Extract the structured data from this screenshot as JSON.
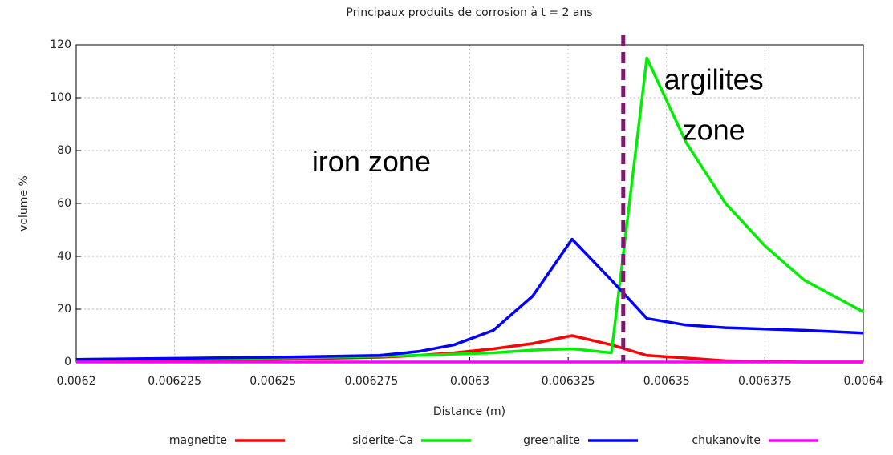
{
  "chart_data": {
    "type": "line",
    "title": "Principaux produits de corrosion à t = 2 ans",
    "x_label": "Distance (m)",
    "y_label": "volume %",
    "x": [
      0.0062,
      0.00625,
      0.006277,
      0.006287,
      0.006296,
      0.006306,
      0.006316,
      0.006326,
      0.006336,
      0.006345,
      0.006355,
      0.006365,
      0.006375,
      0.006385,
      0.0064
    ],
    "series": [
      {
        "name": "magnetite",
        "color": "#ff0000",
        "values": [
          0.5,
          1,
          1.8,
          2.5,
          3.5,
          5,
          7,
          10,
          6.5,
          2.5,
          1.5,
          0.5,
          0.2,
          0,
          0
        ]
      },
      {
        "name": "siderite-Ca",
        "color": "#00ee00",
        "values": [
          1,
          1.5,
          2.2,
          2.5,
          3,
          3.5,
          4.5,
          5,
          3.5,
          115,
          83,
          60,
          44,
          31,
          19
        ]
      },
      {
        "name": "greenalite",
        "color": "#0000ff",
        "values": [
          1,
          1.8,
          2.5,
          4,
          6.5,
          12,
          25,
          46.5,
          31,
          16.5,
          14,
          13,
          12.5,
          12,
          11
        ]
      },
      {
        "name": "chukanovite",
        "color": "#ff00ff",
        "values": [
          0,
          0,
          0,
          0,
          0,
          0,
          0,
          0,
          0,
          0,
          0,
          0,
          0,
          0,
          0
        ]
      }
    ],
    "xlim": [
      0.0062,
      0.0064
    ],
    "xticks": [
      0.0062,
      0.006225,
      0.00625,
      0.006275,
      0.0063,
      0.006325,
      0.00635,
      0.006375,
      0.0064
    ],
    "ylim": [
      0,
      120
    ],
    "yticks": [
      0,
      20,
      40,
      60,
      80,
      100,
      120
    ],
    "grid": true,
    "annotations": [
      {
        "text": "iron zone",
        "x": 0.006275,
        "y": 75
      },
      {
        "text": "argilites",
        "x": 0.006362,
        "y": 106
      },
      {
        "text": "zone",
        "x": 0.006362,
        "y": 87
      }
    ],
    "divider": {
      "x": 0.006339,
      "color": "#7b1a6e"
    }
  }
}
